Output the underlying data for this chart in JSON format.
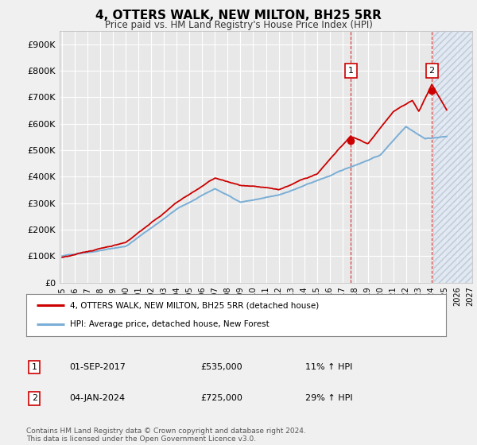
{
  "title": "4, OTTERS WALK, NEW MILTON, BH25 5RR",
  "subtitle": "Price paid vs. HM Land Registry's House Price Index (HPI)",
  "ylim": [
    0,
    950000
  ],
  "yticks": [
    0,
    100000,
    200000,
    300000,
    400000,
    500000,
    600000,
    700000,
    800000,
    900000
  ],
  "xlim_start": 1994.8,
  "xlim_end": 2027.2,
  "bg_color": "#f0f0f0",
  "plot_bg": "#e8e8e8",
  "grid_color": "#ffffff",
  "hpi_color": "#7aaed6",
  "price_color": "#cc0000",
  "sale1_date_x": 2017.67,
  "sale1_price": 535000,
  "sale2_date_x": 2024.02,
  "sale2_price": 725000,
  "hatch_start": 2024.15,
  "legend_entry1": "4, OTTERS WALK, NEW MILTON, BH25 5RR (detached house)",
  "legend_entry2": "HPI: Average price, detached house, New Forest",
  "annot1_label": "1",
  "annot1_date": "01-SEP-2017",
  "annot1_price": "£535,000",
  "annot1_hpi": "11% ↑ HPI",
  "annot2_label": "2",
  "annot2_date": "04-JAN-2024",
  "annot2_price": "£725,000",
  "annot2_hpi": "29% ↑ HPI",
  "footer": "Contains HM Land Registry data © Crown copyright and database right 2024.\nThis data is licensed under the Open Government Licence v3.0.",
  "xticks": [
    1995,
    1996,
    1997,
    1998,
    1999,
    2000,
    2001,
    2002,
    2003,
    2004,
    2005,
    2006,
    2007,
    2008,
    2009,
    2010,
    2011,
    2012,
    2013,
    2014,
    2015,
    2016,
    2017,
    2018,
    2019,
    2020,
    2021,
    2022,
    2023,
    2024,
    2025,
    2026,
    2027
  ]
}
